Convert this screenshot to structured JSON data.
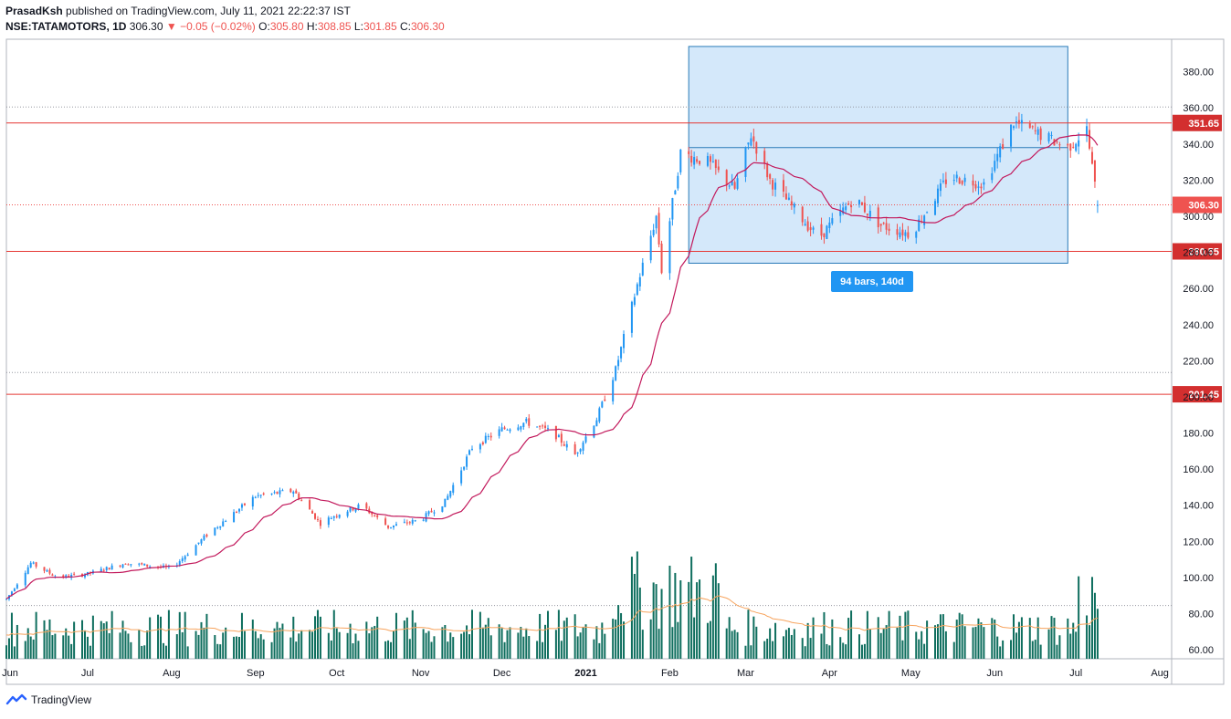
{
  "header": {
    "author": "PrasadKsh",
    "published": "published on TradingView.com, July 11, 2021 22:22:37 IST"
  },
  "legend": {
    "symbol": "NSE:TATAMOTORS, 1D",
    "last": "306.30",
    "change": "−0.05 (−0.02%)",
    "o_label": "O:",
    "o": "305.80",
    "h_label": "H:",
    "h": "308.85",
    "l_label": "L:",
    "l": "301.85",
    "c_label": "C:",
    "c": "306.30"
  },
  "measure_label": "94 bars, 140d",
  "footer": {
    "brand": "TradingView"
  },
  "colors": {
    "up": "#2196f3",
    "down": "#ef5350",
    "ma": "#c2185b",
    "vol": "#0e6e5e",
    "vol_ma": "#f7a35c",
    "level": "#e53935",
    "range_fill": "#cfe5f9",
    "range_stroke": "#2a7bb8"
  },
  "chart_data": {
    "type": "candlestick",
    "x_labels": [
      "Jun",
      "Jul",
      "Aug",
      "Sep",
      "Oct",
      "Nov",
      "Dec",
      "2021",
      "Feb",
      "Mar",
      "Apr",
      "May",
      "Jun",
      "Jul",
      "Aug"
    ],
    "y_ticks": [
      "60.00",
      "80.00",
      "100.00",
      "120.00",
      "140.00",
      "160.00",
      "180.00",
      "200.00",
      "220.00",
      "240.00",
      "260.00",
      "280.00",
      "300.00",
      "320.00",
      "340.00",
      "360.00",
      "380.00"
    ],
    "ylim": [
      55,
      398
    ],
    "price_levels": [
      {
        "value": 351.65,
        "label": "351.65"
      },
      {
        "value": 280.55,
        "label": "280.55"
      },
      {
        "value": 201.45,
        "label": "201.45"
      }
    ],
    "current_price": {
      "value": 306.3,
      "label": "306.30"
    },
    "dotted_levels": [
      360.5,
      213.5,
      84.5
    ],
    "range_box": {
      "start": "2021-02-08",
      "end": "2021-06-28",
      "high": 394,
      "low": 274,
      "bars": 94,
      "days": 140,
      "mid_line": 338
    },
    "series": [
      {
        "name": "price",
        "sample": "monthly anchors",
        "anchors": [
          [
            "2020-06-01",
            88
          ],
          [
            "2020-06-10",
            108
          ],
          [
            "2020-06-20",
            100
          ],
          [
            "2020-07-01",
            102
          ],
          [
            "2020-07-15",
            108
          ],
          [
            "2020-08-01",
            105
          ],
          [
            "2020-08-15",
            125
          ],
          [
            "2020-09-01",
            145
          ],
          [
            "2020-09-15",
            148
          ],
          [
            "2020-09-25",
            130
          ],
          [
            "2020-10-01",
            135
          ],
          [
            "2020-10-10",
            140
          ],
          [
            "2020-10-20",
            128
          ],
          [
            "2020-11-01",
            132
          ],
          [
            "2020-11-10",
            142
          ],
          [
            "2020-11-20",
            172
          ],
          [
            "2020-12-01",
            182
          ],
          [
            "2020-12-10",
            186
          ],
          [
            "2020-12-20",
            180
          ],
          [
            "2020-12-28",
            168
          ],
          [
            "2021-01-05",
            188
          ],
          [
            "2021-01-12",
            215
          ],
          [
            "2021-01-20",
            262
          ],
          [
            "2021-01-27",
            300
          ],
          [
            "2021-01-29",
            270
          ],
          [
            "2021-02-05",
            335
          ],
          [
            "2021-02-15",
            330
          ],
          [
            "2021-02-25",
            315
          ],
          [
            "2021-03-03",
            345
          ],
          [
            "2021-03-10",
            320
          ],
          [
            "2021-03-20",
            302
          ],
          [
            "2021-03-28",
            288
          ],
          [
            "2021-04-10",
            310
          ],
          [
            "2021-04-20",
            295
          ],
          [
            "2021-05-01",
            290
          ],
          [
            "2021-05-15",
            322
          ],
          [
            "2021-05-28",
            318
          ],
          [
            "2021-06-08",
            352
          ],
          [
            "2021-06-18",
            345
          ],
          [
            "2021-06-28",
            338
          ],
          [
            "2021-07-05",
            348
          ],
          [
            "2021-07-09",
            306.3
          ]
        ]
      }
    ]
  }
}
